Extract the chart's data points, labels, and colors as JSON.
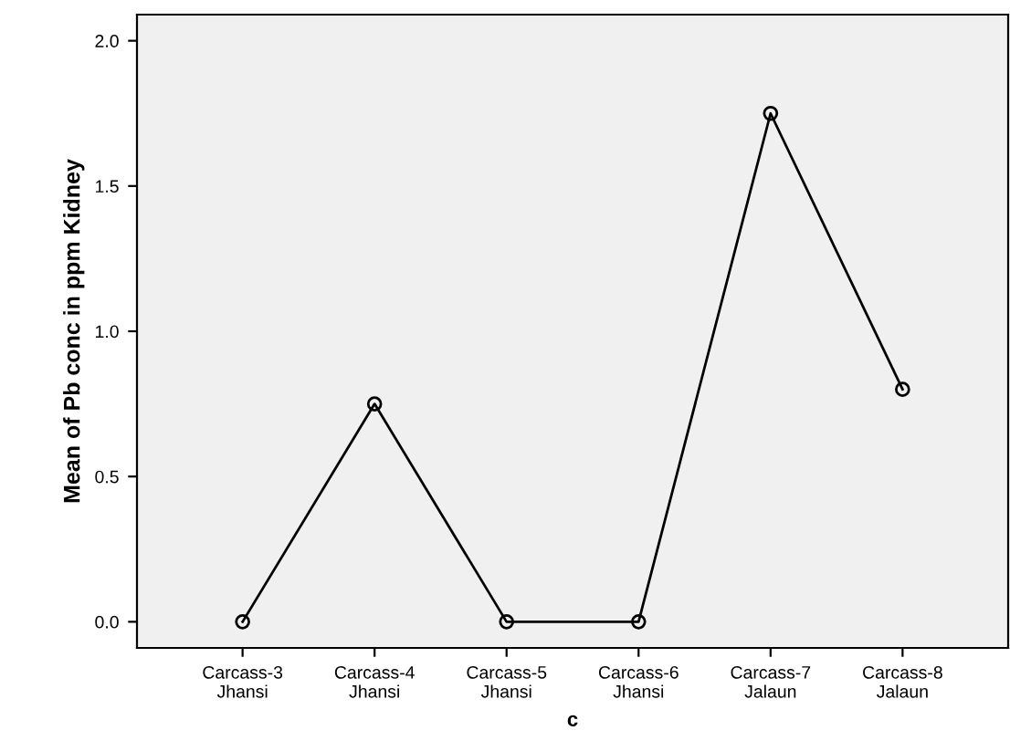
{
  "chart_data": {
    "type": "line",
    "xlabel": "c",
    "ylabel": "Mean of Pb conc in ppm Kidney",
    "categories": [
      "Carcass-3\nJhansi",
      "Carcass-4\nJhansi",
      "Carcass-5\nJhansi",
      "Carcass-6\nJhansi",
      "Carcass-7\nJalaun",
      "Carcass-8\nJalaun"
    ],
    "series": [
      {
        "color": "#000000",
        "values": [
          0.0,
          0.75,
          0.0,
          0.0,
          1.75,
          0.8
        ]
      }
    ],
    "ylim": [
      -0.09,
      2.09
    ],
    "yticks": [
      {
        "value": 0,
        "label": "0.0"
      },
      {
        "value": 0.5,
        "label": "0.5"
      },
      {
        "value": 1,
        "label": "1.0"
      },
      {
        "value": 1.5,
        "label": "1.5"
      },
      {
        "value": 2,
        "label": "2.0"
      }
    ],
    "marker": "circle",
    "line_style": "solid",
    "grid": false,
    "legend": false
  }
}
